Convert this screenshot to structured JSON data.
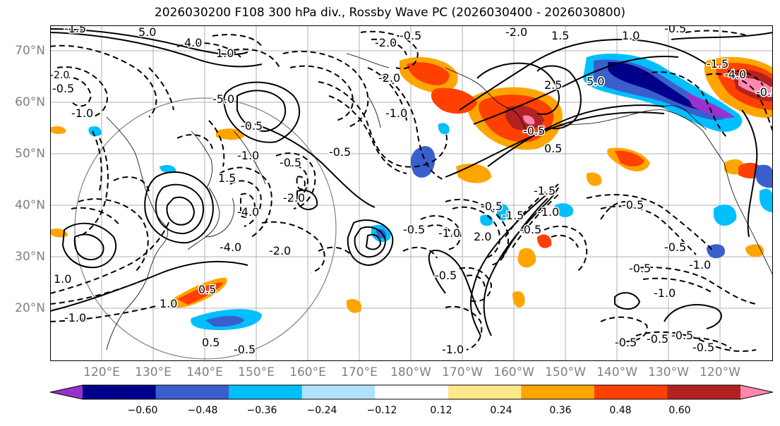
{
  "title": "2026030200 F108 300 hPa div., Rossby Wave PC (2026030400 - 2026030800)",
  "lat_labels": [
    "70°N",
    "60°N",
    "50°N",
    "40°N",
    "30°N",
    "20°N"
  ],
  "lon_labels": [
    "120°E",
    "130°E",
    "140°E",
    "150°E",
    "160°E",
    "170°E",
    "180°W",
    "170°W",
    "160°W",
    "150°W",
    "140°W",
    "130°W",
    "120°W"
  ],
  "colorbar": {
    "ticks": [
      "−0.60",
      "−0.48",
      "−0.36",
      "−0.24",
      "−0.12",
      "0.12",
      "0.24",
      "0.36",
      "0.48",
      "0.60"
    ],
    "colors": [
      "#9932cc",
      "#00008b",
      "#3a5fcd",
      "#00bfff",
      "#b0e2ff",
      "#ffffff",
      "#ffe88a",
      "#ffa500",
      "#ff4000",
      "#b22222",
      "#ff88b0"
    ]
  },
  "contour_labels": [
    "-5.0",
    "-4.0",
    "-2.0",
    "-1.5",
    "-1.0",
    "-0.5",
    "0.5",
    "1.0",
    "1.5",
    "2.0",
    "2.5",
    "4.0",
    "5.0"
  ]
}
